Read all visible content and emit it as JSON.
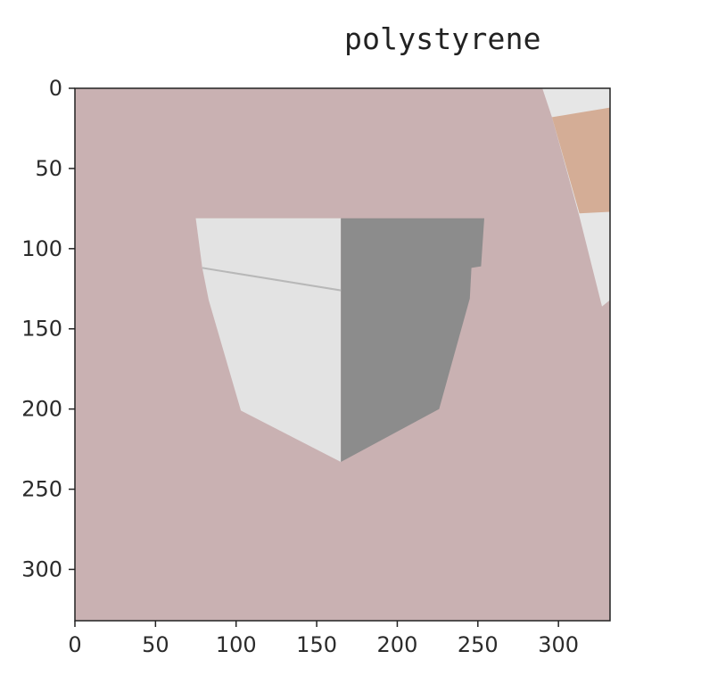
{
  "chart_data": {
    "type": "image",
    "title": "polystyrene",
    "xlim": [
      0,
      332
    ],
    "ylim": [
      332,
      0
    ],
    "x_ticks": [
      0,
      50,
      100,
      150,
      200,
      250,
      300
    ],
    "y_ticks": [
      0,
      50,
      100,
      150,
      200,
      250,
      300
    ],
    "x_tick_labels": [
      "0",
      "50",
      "100",
      "150",
      "200",
      "250",
      "300"
    ],
    "y_tick_labels": [
      "0",
      "50",
      "100",
      "150",
      "200",
      "250",
      "300"
    ],
    "background_color": "#c9b1b2",
    "regions": [
      {
        "name": "box-front-face",
        "color": "#e3e3e3",
        "points": [
          [
            75,
            81
          ],
          [
            165,
            81
          ],
          [
            165,
            233
          ],
          [
            103,
            201
          ],
          [
            83,
            132
          ],
          [
            79,
            112
          ]
        ]
      },
      {
        "name": "box-side-face",
        "color": "#8c8c8c",
        "points": [
          [
            165,
            81
          ],
          [
            254,
            81
          ],
          [
            252,
            111
          ],
          [
            246,
            112
          ],
          [
            245,
            131
          ],
          [
            226,
            200
          ],
          [
            165,
            233
          ]
        ]
      },
      {
        "name": "top-right-white-shape",
        "color": "#e6e6e6",
        "points": [
          [
            290,
            0
          ],
          [
            332,
            0
          ],
          [
            332,
            132
          ],
          [
            327,
            136
          ],
          [
            313,
            80
          ],
          [
            296,
            18
          ]
        ]
      },
      {
        "name": "top-right-tan-shape",
        "color": "#d4ad96",
        "points": [
          [
            296,
            18
          ],
          [
            332,
            12
          ],
          [
            332,
            77
          ],
          [
            313,
            78
          ]
        ]
      }
    ],
    "lines": [
      {
        "name": "box-rim-line",
        "color": "#b8b8b8",
        "points": [
          [
            79,
            112
          ],
          [
            165,
            126
          ]
        ]
      }
    ],
    "axis_color": "#222222"
  }
}
